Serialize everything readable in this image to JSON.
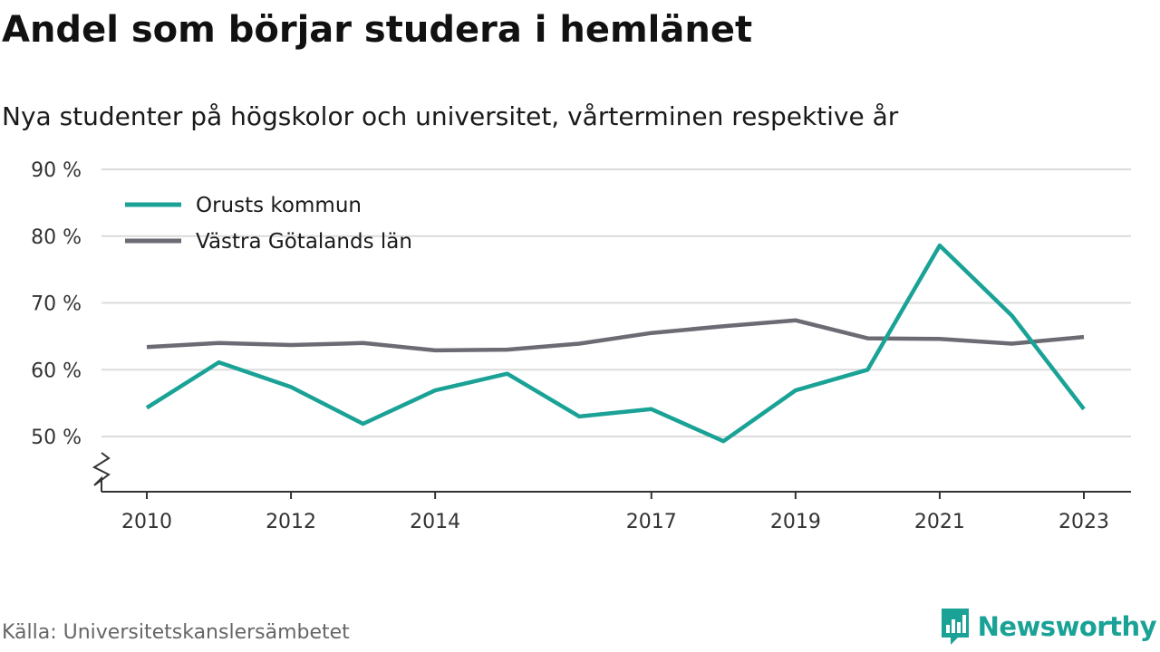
{
  "header": {
    "title": "Andel som börjar studera i hemlänet",
    "subtitle": "Nya studenter på högskolor och universitet, vårterminen respektive år"
  },
  "footer": {
    "source": "Källa: Universitetskanslersämbetet",
    "brand": "Newsworthy",
    "brand_icon": "bar-chart-icon",
    "brand_color": "#1aa296"
  },
  "chart_data": {
    "type": "line",
    "x": [
      2010,
      2011,
      2012,
      2013,
      2014,
      2015,
      2016,
      2017,
      2018,
      2019,
      2020,
      2021,
      2022,
      2023
    ],
    "x_tick_labels": [
      "2010",
      "2012",
      "2014",
      "2017",
      "2019",
      "2021",
      "2023"
    ],
    "y_tick_labels": [
      "50 %",
      "60 %",
      "70 %",
      "80 %",
      "90 %"
    ],
    "ylim": [
      42,
      90
    ],
    "y_ticks": [
      50,
      60,
      70,
      80,
      90
    ],
    "y_axis_break": true,
    "grid": "horizontal",
    "legend_position": "top-left",
    "series": [
      {
        "name": "Orusts kommun",
        "color": "#1aa296",
        "values": [
          54.3,
          61.1,
          57.4,
          51.9,
          56.9,
          59.4,
          53.0,
          54.1,
          49.3,
          56.9,
          60.0,
          78.6,
          68.1,
          54.1
        ]
      },
      {
        "name": "Västra Götalands län",
        "color": "#6b6b73",
        "values": [
          63.4,
          64.0,
          63.7,
          64.0,
          62.9,
          63.0,
          63.9,
          65.5,
          66.5,
          67.4,
          64.7,
          64.6,
          63.9,
          64.9
        ]
      }
    ]
  }
}
